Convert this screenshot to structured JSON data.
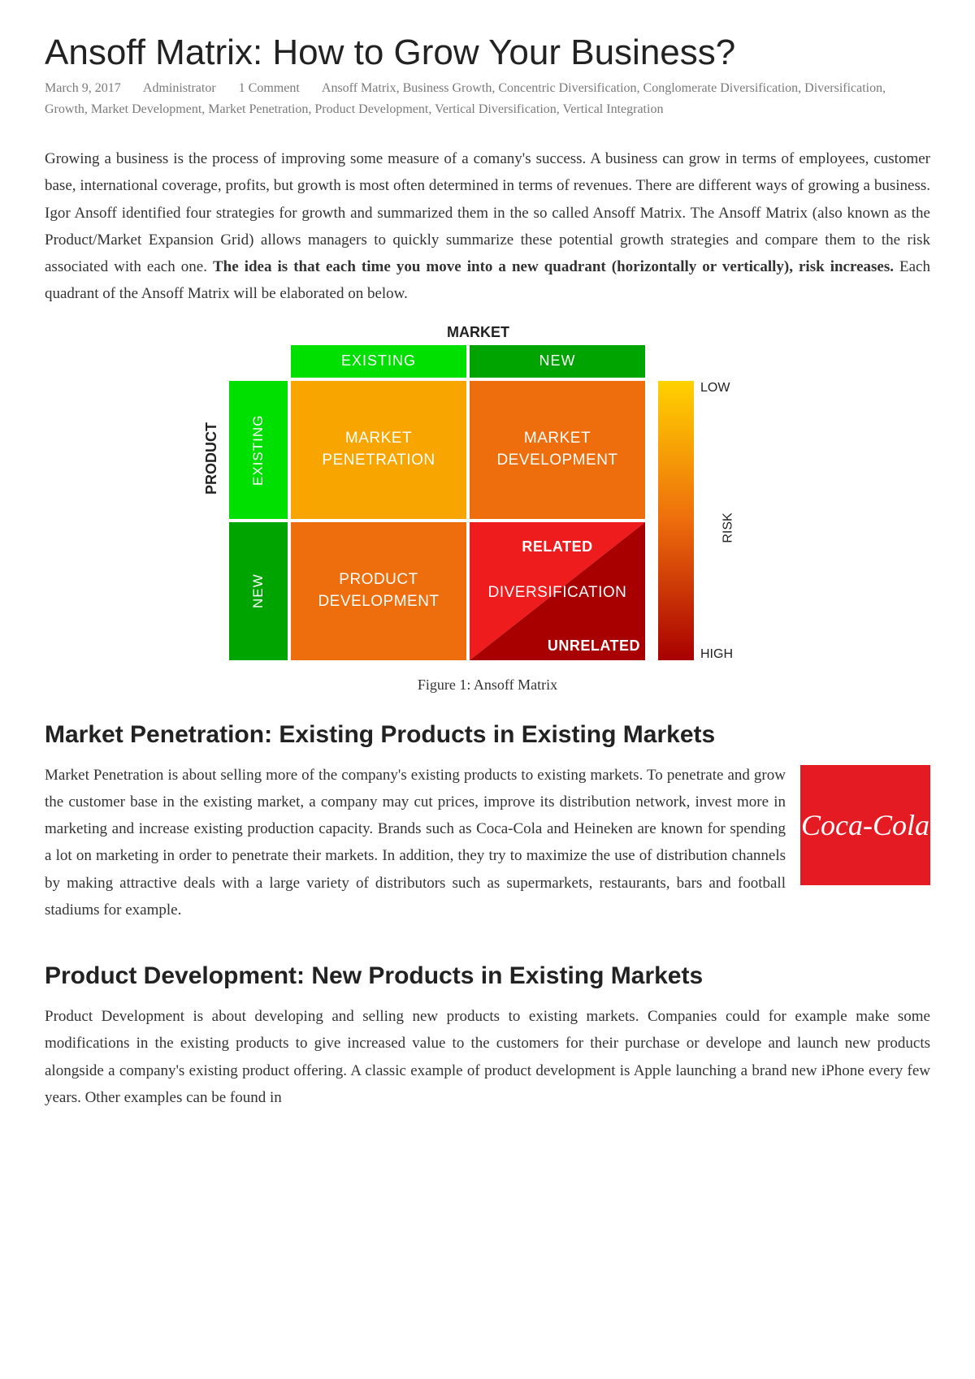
{
  "article": {
    "title": "Ansoff Matrix: How to Grow Your Business?",
    "meta": {
      "date": "March 9, 2017",
      "author": "Administrator",
      "comments": "1 Comment",
      "tags": [
        "Ansoff Matrix",
        "Business Growth",
        "Concentric Diversification",
        "Conglomerate Diversification",
        "Diversification",
        "Growth",
        "Market Development",
        "Market Penetration",
        "Product Development",
        "Vertical Diversification",
        "Vertical Integration"
      ]
    },
    "intro_pre": "Growing a business is the process of improving some measure of a comany's success. A business can grow in terms of employees, customer base, international coverage, profits, but growth is most often determined in terms of revenues. There are different ways of growing a business. Igor Ansoff identified four strategies for growth and summarized them in the so called Ansoff Matrix. The Ansoff Matrix (also known as the Product/Market Expansion Grid) allows managers to quickly summarize these potential growth strategies and compare them to the risk associated with each one. ",
    "intro_bold": "The idea is that each time you move into a new quadrant (horizontally or vertically), risk increases.",
    "intro_post": " Each quadrant of the Ansoff Matrix will be elaborated on below.",
    "caption": "Figure 1: Ansoff Matrix",
    "section1_title": "Market Penetration: Existing Products in Existing Markets",
    "section1_body": "Market Penetration is about selling more of the company's existing products to existing markets. To penetrate and grow the customer base in the existing market, a company may cut prices, improve its distribution network, invest more in marketing and increase existing production capacity. Brands such as Coca-Cola and Heineken are known for spending a lot on marketing in order to penetrate their markets. In addition, they try to maximize the use of distribution channels by making attractive deals with a large variety of distributors such as supermarkets, restaurants, bars and football stadiums for example.",
    "section2_title": "Product Development: New Products in Existing Markets",
    "section2_body": "Product Development is about developing and selling new products to existing markets. Companies could for example make some modifications in the existing products to give increased value to the customers for their purchase or develope and launch new products alongside a company's existing product offering. A classic example of product development is Apple launching a brand new iPhone every few years. Other examples can be found in",
    "cocacola_text": "Coca-Cola"
  },
  "matrix": {
    "axis_top": "MARKET",
    "axis_left": "PRODUCT",
    "col_labels": [
      "EXISTING",
      "NEW"
    ],
    "row_labels": [
      "EXISTING",
      "NEW"
    ],
    "header_colors": {
      "col_existing": "#00e000",
      "col_new": "#00a400",
      "row_existing": "#00e000",
      "row_new": "#00a400"
    },
    "cells": {
      "q1": {
        "lines": [
          "MARKET",
          "PENETRATION"
        ],
        "bg": "#f9a500"
      },
      "q2": {
        "lines": [
          "MARKET",
          "DEVELOPMENT"
        ],
        "bg": "#ee6d0c"
      },
      "q3": {
        "lines": [
          "PRODUCT",
          "DEVELOPMENT"
        ],
        "bg": "#ee6d0c"
      },
      "q4": {
        "top_label": "RELATED",
        "mid_label": "DIVERSIFICATION",
        "bot_label": "UNRELATED",
        "upper_color": "#ee1c1c",
        "lower_color": "#a80000"
      }
    },
    "risk": {
      "low": "LOW",
      "high": "HIGH",
      "label": "RISK",
      "grad_top": "#ffd200",
      "grad_mid": "#ee6d0c",
      "grad_bot": "#a80000"
    }
  }
}
